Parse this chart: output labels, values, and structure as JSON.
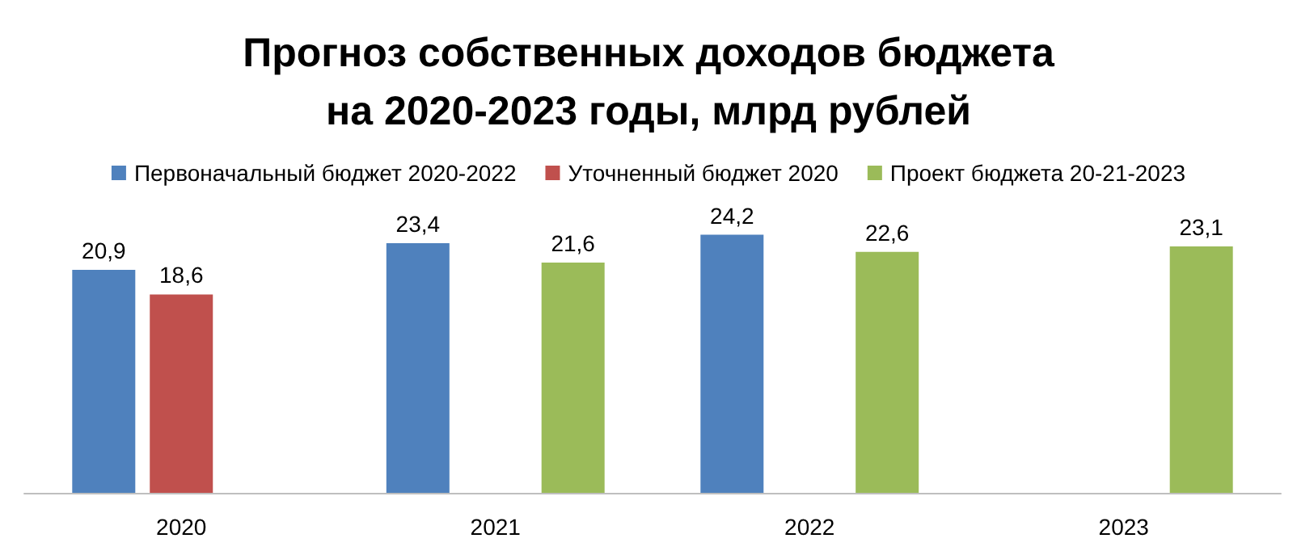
{
  "chart_data": {
    "type": "bar",
    "title": "Прогноз собственных доходов бюджета\nна 2020-2023 годы, млрд рублей",
    "categories": [
      "2020",
      "2021",
      "2022",
      "2023"
    ],
    "legend": "top",
    "series": [
      {
        "name": "Первоначальный бюджет 2020-2022",
        "color": "#4f81bd",
        "values": [
          20.9,
          23.4,
          24.2,
          null
        ],
        "value_labels": [
          "20,9",
          "23,4",
          "24,2",
          null
        ]
      },
      {
        "name": "Уточненный бюджет 2020",
        "color": "#c0504d",
        "values": [
          18.6,
          null,
          null,
          null
        ],
        "value_labels": [
          "18,6",
          null,
          null,
          null
        ]
      },
      {
        "name": "Проект бюджета 20-21-2023",
        "color": "#9bbb59",
        "values": [
          null,
          21.6,
          22.6,
          23.1
        ],
        "value_labels": [
          null,
          "21,6",
          "22,6",
          "23,1"
        ]
      }
    ]
  }
}
